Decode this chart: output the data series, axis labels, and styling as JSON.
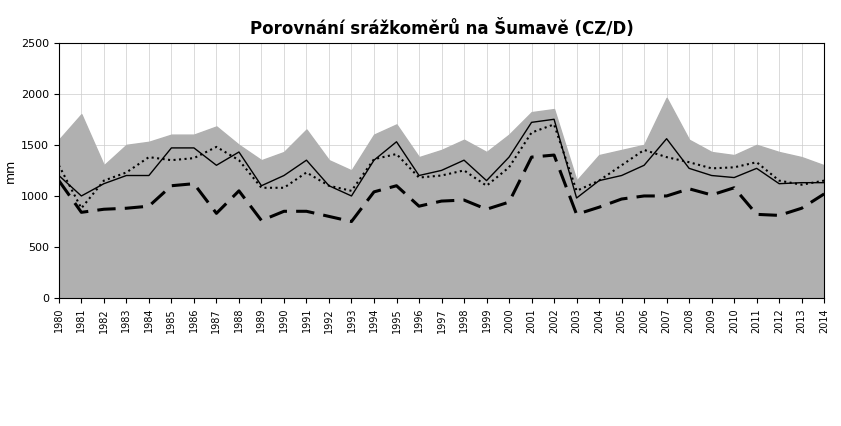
{
  "title": "Porovnání srážkoměrů na Šumavě (CZ/D)",
  "ylabel": "mm",
  "years": [
    1980,
    1981,
    1982,
    1983,
    1984,
    1985,
    1986,
    1987,
    1988,
    1989,
    1990,
    1991,
    1992,
    1993,
    1994,
    1995,
    1996,
    1997,
    1998,
    1999,
    2000,
    2001,
    2002,
    2003,
    2004,
    2005,
    2006,
    2007,
    2008,
    2009,
    2010,
    2011,
    2012,
    2013,
    2014
  ],
  "series1_grosser_arber": [
    1550,
    1800,
    1300,
    1500,
    1530,
    1600,
    1600,
    1680,
    1500,
    1350,
    1430,
    1650,
    1350,
    1250,
    1600,
    1700,
    1380,
    1450,
    1550,
    1430,
    1600,
    1820,
    1850,
    1150,
    1400,
    1450,
    1500,
    1960,
    1550,
    1430,
    1400,
    1500,
    1430,
    1380,
    1300
  ],
  "series2_lindberg": [
    1200,
    1000,
    1120,
    1200,
    1200,
    1470,
    1470,
    1300,
    1430,
    1100,
    1200,
    1350,
    1100,
    1000,
    1350,
    1530,
    1200,
    1250,
    1350,
    1150,
    1380,
    1720,
    1750,
    980,
    1150,
    1200,
    1300,
    1560,
    1270,
    1200,
    1180,
    1270,
    1120,
    1130,
    1130
  ],
  "series3_filipova_hut": [
    1300,
    880,
    1150,
    1230,
    1380,
    1350,
    1370,
    1480,
    1350,
    1080,
    1080,
    1230,
    1100,
    1050,
    1360,
    1410,
    1180,
    1200,
    1250,
    1100,
    1280,
    1620,
    1700,
    1050,
    1150,
    1300,
    1450,
    1380,
    1330,
    1270,
    1280,
    1330,
    1150,
    1110,
    1150
  ],
  "series4_churanov": [
    1150,
    840,
    870,
    880,
    900,
    1100,
    1120,
    830,
    1050,
    760,
    850,
    850,
    800,
    750,
    1040,
    1100,
    900,
    950,
    960,
    870,
    940,
    1380,
    1400,
    820,
    890,
    970,
    1000,
    1000,
    1070,
    1010,
    1080,
    820,
    810,
    880,
    1020
  ],
  "ylim": [
    0,
    2500
  ],
  "yticks": [
    0,
    500,
    1000,
    1500,
    2000,
    2500
  ],
  "fill_color": "#b0b0b0",
  "line2_color": "#000000",
  "line3_color": "#000000",
  "line4_color": "#000000",
  "background_color": "#ffffff",
  "grid_color": "#cccccc"
}
